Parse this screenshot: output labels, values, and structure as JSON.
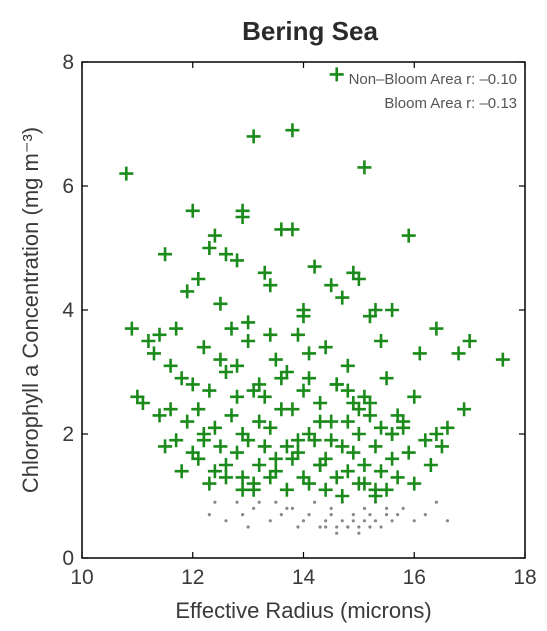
{
  "chart_data": {
    "type": "scatter",
    "title": "Bering Sea",
    "xlabel": "Effective Radius (microns)",
    "ylabel": "Chlorophyll a Concentration (mg m⁻³)",
    "xlim": [
      10,
      18
    ],
    "ylim": [
      0,
      8
    ],
    "xticks": [
      "10",
      "12",
      "14",
      "16",
      "18"
    ],
    "yticks": [
      "0",
      "2",
      "4",
      "6",
      "8"
    ],
    "grid": false,
    "legend_position": "top-right",
    "legend": [
      {
        "label": "Non–Bloom Area r: –0.10",
        "color": "#888888"
      },
      {
        "label": "Bloom Area r: –0.13",
        "color": "#1a8a1a"
      }
    ],
    "series": [
      {
        "marker": "+",
        "color": "#1a8a1a",
        "x": [
          14.6,
          13.1,
          13.8,
          15.1,
          10.8,
          12.9,
          12.0,
          12.4,
          12.3,
          12.6,
          12.8,
          12.9,
          13.3,
          13.6,
          13.8,
          14.2,
          14.5,
          15.0,
          15.9,
          16.4,
          11.5,
          11.9,
          12.1,
          12.5,
          13.4,
          14.0,
          14.7,
          14.9,
          15.3,
          15.6,
          10.9,
          11.2,
          11.4,
          11.7,
          12.2,
          12.7,
          13.0,
          13.5,
          13.9,
          14.1,
          14.4,
          14.8,
          15.2,
          15.4,
          16.1,
          16.8,
          17.0,
          17.6,
          11.3,
          11.6,
          11.8,
          12.0,
          12.3,
          12.6,
          12.8,
          13.1,
          13.3,
          13.6,
          13.7,
          14.0,
          14.3,
          14.6,
          14.9,
          15.1,
          15.5,
          15.7,
          16.0,
          16.6,
          16.9,
          11.1,
          11.4,
          11.6,
          11.9,
          12.1,
          12.4,
          12.7,
          12.9,
          13.2,
          13.4,
          13.8,
          14.1,
          14.3,
          14.5,
          14.8,
          15.0,
          15.2,
          15.4,
          15.6,
          15.8,
          16.2,
          16.4,
          11.5,
          11.7,
          12.0,
          12.2,
          12.5,
          12.8,
          13.0,
          13.3,
          13.5,
          13.7,
          13.9,
          14.2,
          14.4,
          14.7,
          14.9,
          15.1,
          15.3,
          15.6,
          15.9,
          16.3,
          11.8,
          12.1,
          12.4,
          12.6,
          12.9,
          13.2,
          13.5,
          13.8,
          14.0,
          14.3,
          14.6,
          14.8,
          15.1,
          15.4,
          15.7,
          16.0,
          12.3,
          12.6,
          12.9,
          13.1,
          13.4,
          13.7,
          14.1,
          14.4,
          14.7,
          15.0,
          15.3,
          15.5,
          12.8,
          13.2,
          13.6,
          14.1,
          14.5,
          14.8,
          15.2,
          15.6,
          13.0,
          13.4,
          14.0,
          14.6,
          15.0,
          12.5,
          13.9,
          14.3,
          15.3,
          12.2,
          16.5,
          11.0,
          13.1,
          15.8
        ],
        "y": [
          7.8,
          6.8,
          6.9,
          6.3,
          6.2,
          5.6,
          5.6,
          5.2,
          5.0,
          4.9,
          4.8,
          5.5,
          4.6,
          5.3,
          5.3,
          4.7,
          4.4,
          4.5,
          5.2,
          3.7,
          4.9,
          4.3,
          4.5,
          4.1,
          4.4,
          4.0,
          4.2,
          4.6,
          4.0,
          4.0,
          3.7,
          3.5,
          3.6,
          3.7,
          3.4,
          3.7,
          3.5,
          3.2,
          3.6,
          3.3,
          3.4,
          3.1,
          3.9,
          3.5,
          3.3,
          3.3,
          3.5,
          3.2,
          3.3,
          3.1,
          2.9,
          2.8,
          2.7,
          3.0,
          3.1,
          2.7,
          2.6,
          2.9,
          3.0,
          2.7,
          2.5,
          2.8,
          2.5,
          2.6,
          2.9,
          2.3,
          2.6,
          2.1,
          2.4,
          2.5,
          2.3,
          2.4,
          2.2,
          2.4,
          2.1,
          2.3,
          2.0,
          2.2,
          2.1,
          2.4,
          2.0,
          2.2,
          1.9,
          2.2,
          2.0,
          2.3,
          2.1,
          2.0,
          2.2,
          1.9,
          2.0,
          1.8,
          1.9,
          1.7,
          1.9,
          1.8,
          1.7,
          1.9,
          1.8,
          1.6,
          1.8,
          1.7,
          1.9,
          1.6,
          1.8,
          1.7,
          1.5,
          1.8,
          1.6,
          1.7,
          1.5,
          1.4,
          1.6,
          1.4,
          1.5,
          1.3,
          1.5,
          1.4,
          1.6,
          1.3,
          1.5,
          1.3,
          1.4,
          1.2,
          1.4,
          1.3,
          1.2,
          1.2,
          1.3,
          1.1,
          1.2,
          1.3,
          1.1,
          1.2,
          1.1,
          1.0,
          1.2,
          1.0,
          1.1,
          2.6,
          2.8,
          2.4,
          2.9,
          2.2,
          2.7,
          2.5,
          2.0,
          3.8,
          3.6,
          3.9,
          2.8,
          2.4,
          3.2,
          1.9,
          1.5,
          1.1,
          2.0,
          1.8,
          2.6,
          1.1,
          2.1
        ]
      },
      {
        "marker": ".",
        "color": "#888888",
        "x": [
          12.3,
          12.6,
          12.9,
          13.1,
          13.4,
          13.6,
          13.8,
          14.0,
          14.1,
          14.3,
          14.4,
          14.5,
          14.6,
          14.7,
          14.8,
          14.9,
          15.0,
          15.1,
          15.2,
          15.3,
          15.4,
          15.5,
          15.6,
          15.8,
          16.0,
          16.2,
          12.8,
          13.2,
          13.7,
          14.2,
          14.5,
          14.7,
          14.9,
          15.1,
          15.3,
          15.5,
          15.7,
          13.9,
          14.4,
          14.6,
          14.8,
          15.0,
          15.2,
          12.4,
          13.0,
          13.5,
          16.4,
          16.6
        ],
        "y": [
          0.7,
          0.6,
          0.7,
          0.8,
          0.6,
          0.7,
          0.8,
          0.6,
          0.7,
          0.5,
          0.6,
          0.7,
          0.5,
          0.6,
          0.5,
          0.6,
          0.5,
          0.6,
          0.7,
          0.6,
          0.5,
          0.7,
          0.6,
          0.8,
          0.6,
          0.7,
          0.9,
          0.9,
          0.8,
          0.9,
          0.8,
          0.9,
          0.7,
          0.8,
          0.9,
          0.8,
          0.7,
          0.5,
          0.5,
          0.4,
          0.5,
          0.4,
          0.5,
          0.9,
          0.5,
          0.9,
          0.9,
          0.6
        ]
      }
    ]
  }
}
